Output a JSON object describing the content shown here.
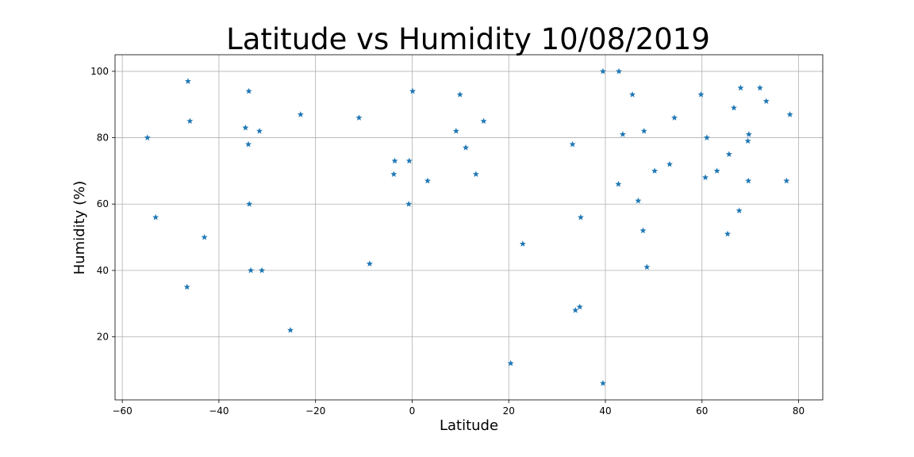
{
  "chart_data": {
    "type": "scatter",
    "title": "Latitude vs Humidity 10/08/2019",
    "xlabel": "Latitude",
    "ylabel": "Humidity (%)",
    "xlim": [
      -61.5,
      85
    ],
    "ylim": [
      1,
      105
    ],
    "xticks": [
      -60,
      -40,
      -20,
      0,
      20,
      40,
      60,
      80
    ],
    "yticks": [
      20,
      40,
      60,
      80,
      100
    ],
    "grid": true,
    "marker": "star",
    "color": "#1f77b4",
    "points": [
      {
        "x": -54.8,
        "y": 80
      },
      {
        "x": -53.1,
        "y": 56
      },
      {
        "x": -46.4,
        "y": 97
      },
      {
        "x": -46.0,
        "y": 85
      },
      {
        "x": -46.6,
        "y": 35
      },
      {
        "x": -43.0,
        "y": 50
      },
      {
        "x": -33.8,
        "y": 94
      },
      {
        "x": -34.5,
        "y": 83
      },
      {
        "x": -33.9,
        "y": 78
      },
      {
        "x": -31.6,
        "y": 82
      },
      {
        "x": -33.7,
        "y": 60
      },
      {
        "x": -33.4,
        "y": 40
      },
      {
        "x": -31.1,
        "y": 40
      },
      {
        "x": -25.2,
        "y": 22
      },
      {
        "x": -23.1,
        "y": 87
      },
      {
        "x": -11.0,
        "y": 86
      },
      {
        "x": -8.8,
        "y": 42
      },
      {
        "x": -3.6,
        "y": 73
      },
      {
        "x": -3.8,
        "y": 69
      },
      {
        "x": -0.6,
        "y": 73
      },
      {
        "x": -0.7,
        "y": 60
      },
      {
        "x": 0.1,
        "y": 94
      },
      {
        "x": 3.2,
        "y": 67
      },
      {
        "x": 9.9,
        "y": 93
      },
      {
        "x": 9.1,
        "y": 82
      },
      {
        "x": 11.1,
        "y": 77
      },
      {
        "x": 14.8,
        "y": 85
      },
      {
        "x": 13.2,
        "y": 69
      },
      {
        "x": 20.4,
        "y": 12
      },
      {
        "x": 22.9,
        "y": 48
      },
      {
        "x": 33.2,
        "y": 78
      },
      {
        "x": 33.8,
        "y": 28
      },
      {
        "x": 34.7,
        "y": 29
      },
      {
        "x": 34.9,
        "y": 56
      },
      {
        "x": 39.5,
        "y": 100
      },
      {
        "x": 39.5,
        "y": 6
      },
      {
        "x": 42.8,
        "y": 100
      },
      {
        "x": 42.7,
        "y": 66
      },
      {
        "x": 43.6,
        "y": 81
      },
      {
        "x": 45.6,
        "y": 93
      },
      {
        "x": 46.8,
        "y": 61
      },
      {
        "x": 48.0,
        "y": 82
      },
      {
        "x": 47.8,
        "y": 52
      },
      {
        "x": 48.6,
        "y": 41
      },
      {
        "x": 50.2,
        "y": 70
      },
      {
        "x": 53.3,
        "y": 72
      },
      {
        "x": 54.3,
        "y": 86
      },
      {
        "x": 59.8,
        "y": 93
      },
      {
        "x": 61.0,
        "y": 80
      },
      {
        "x": 60.7,
        "y": 68
      },
      {
        "x": 63.1,
        "y": 70
      },
      {
        "x": 65.3,
        "y": 51
      },
      {
        "x": 65.6,
        "y": 75
      },
      {
        "x": 66.6,
        "y": 89
      },
      {
        "x": 67.7,
        "y": 58
      },
      {
        "x": 68.0,
        "y": 95
      },
      {
        "x": 69.5,
        "y": 79
      },
      {
        "x": 69.7,
        "y": 81
      },
      {
        "x": 69.6,
        "y": 67
      },
      {
        "x": 72.0,
        "y": 95
      },
      {
        "x": 73.3,
        "y": 91
      },
      {
        "x": 77.5,
        "y": 67
      },
      {
        "x": 78.2,
        "y": 87
      }
    ]
  }
}
